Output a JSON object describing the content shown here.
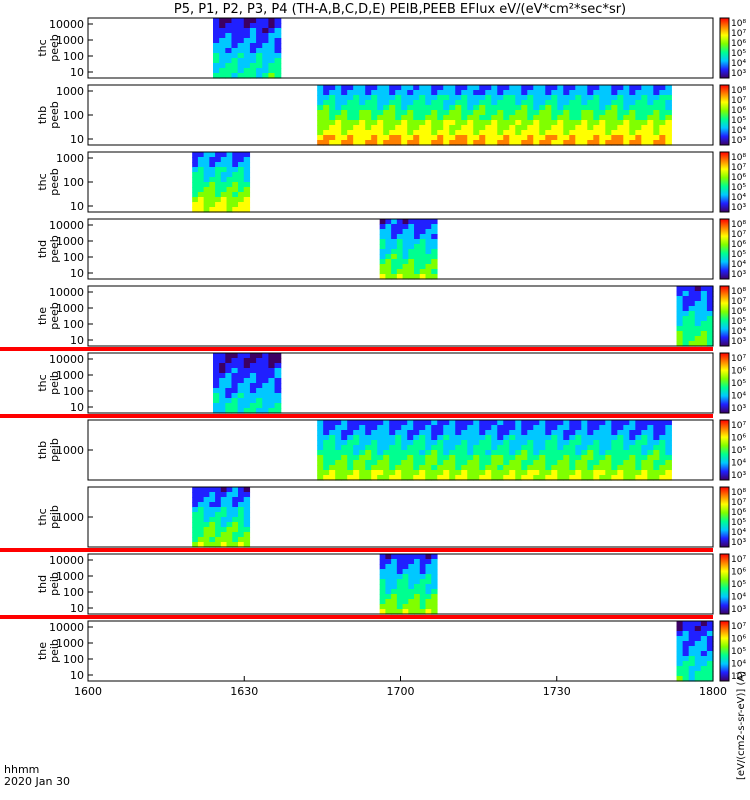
{
  "chart_data": {
    "type": "heatmap",
    "title": "P5, P1, P2, P3, P4 (TH-A,B,C,D,E) PEIB,PEEB EFlux eV/(eV*cm²*sec*sr)",
    "x_ticks": [
      "1600",
      "1630",
      "1700",
      "1730",
      "1800"
    ],
    "x_range_minutes": [
      0,
      120
    ],
    "x_axis_label": "hhmm",
    "date_label": "2020 Jan 30",
    "y_scale": "log",
    "colorbar_label": "[eV/(cm2-s-sr-eV)] (A)",
    "colormap": [
      "#3c0064",
      "#2020ff",
      "#00c8ff",
      "#00ff90",
      "#80ff00",
      "#ffff00",
      "#ff8000",
      "#ff0000"
    ],
    "panels": [
      {
        "probe": "thc",
        "instrument": "peeb",
        "y_ticks": [
          "10000",
          "1000",
          "100",
          "10"
        ],
        "data_start_min": 24,
        "data_end_min": 37,
        "intensity": 0.45,
        "red_bar": false,
        "cb_ticks": [
          "10⁸",
          "10⁷",
          "10⁶",
          "10⁵",
          "10⁴",
          "10³"
        ]
      },
      {
        "probe": "thb",
        "instrument": "peeb",
        "y_ticks": [
          "1000",
          "100",
          "10"
        ],
        "data_start_min": 44,
        "data_end_min": 112,
        "intensity": 0.8,
        "red_bar": false,
        "cb_ticks": [
          "10⁸",
          "10⁷",
          "10⁶",
          "10⁵",
          "10⁴",
          "10³"
        ]
      },
      {
        "probe": "thc",
        "instrument": "peeb",
        "y_ticks": [
          "1000",
          "100",
          "10"
        ],
        "data_start_min": 20,
        "data_end_min": 31,
        "intensity": 0.7,
        "red_bar": false,
        "cb_ticks": [
          "10⁸",
          "10⁷",
          "10⁶",
          "10⁵",
          "10⁴",
          "10³"
        ]
      },
      {
        "probe": "thd",
        "instrument": "peeb",
        "y_ticks": [
          "10000",
          "1000",
          "100",
          "10"
        ],
        "data_start_min": 56,
        "data_end_min": 67,
        "intensity": 0.6,
        "red_bar": false,
        "cb_ticks": [
          "10⁸",
          "10⁷",
          "10⁶",
          "10⁵",
          "10⁴",
          "10³"
        ]
      },
      {
        "probe": "the",
        "instrument": "peeb",
        "y_ticks": [
          "10000",
          "1000",
          "100",
          "10"
        ],
        "data_start_min": 113,
        "data_end_min": 120,
        "intensity": 0.55,
        "red_bar": false,
        "cb_ticks": [
          "10⁸",
          "10⁷",
          "10⁶",
          "10⁵",
          "10⁴",
          "10³"
        ]
      },
      {
        "probe": "thc",
        "instrument": "peib",
        "y_ticks": [
          "10000",
          "1000",
          "100",
          "10"
        ],
        "data_start_min": 24,
        "data_end_min": 37,
        "intensity": 0.4,
        "red_bar": true,
        "cb_ticks": [
          "10⁷",
          "10⁶",
          "10⁵",
          "10⁴",
          "10³"
        ]
      },
      {
        "probe": "thb",
        "instrument": "peib",
        "y_ticks": [
          "1000"
        ],
        "data_start_min": 44,
        "data_end_min": 112,
        "intensity": 0.65,
        "red_bar": true,
        "cb_ticks": [
          "10⁷",
          "10⁶",
          "10⁵",
          "10⁴",
          "10³"
        ]
      },
      {
        "probe": "thc",
        "instrument": "peib",
        "y_ticks": [
          "1000"
        ],
        "data_start_min": 20,
        "data_end_min": 31,
        "intensity": 0.6,
        "red_bar": false,
        "cb_ticks": [
          "10⁸",
          "10⁷",
          "10⁶",
          "10⁵",
          "10⁴",
          "10³"
        ]
      },
      {
        "probe": "thd",
        "instrument": "peib",
        "y_ticks": [
          "10000",
          "1000",
          "100",
          "10"
        ],
        "data_start_min": 56,
        "data_end_min": 67,
        "intensity": 0.6,
        "red_bar": true,
        "cb_ticks": [
          "10⁷",
          "10⁶",
          "10⁵",
          "10⁴",
          "10³"
        ]
      },
      {
        "probe": "the",
        "instrument": "peib",
        "y_ticks": [
          "10000",
          "1000",
          "100",
          "10"
        ],
        "data_start_min": 113,
        "data_end_min": 120,
        "intensity": 0.45,
        "red_bar": true,
        "cb_ticks": [
          "10⁷",
          "10⁶",
          "10⁵",
          "10⁴",
          "10³"
        ]
      }
    ]
  }
}
